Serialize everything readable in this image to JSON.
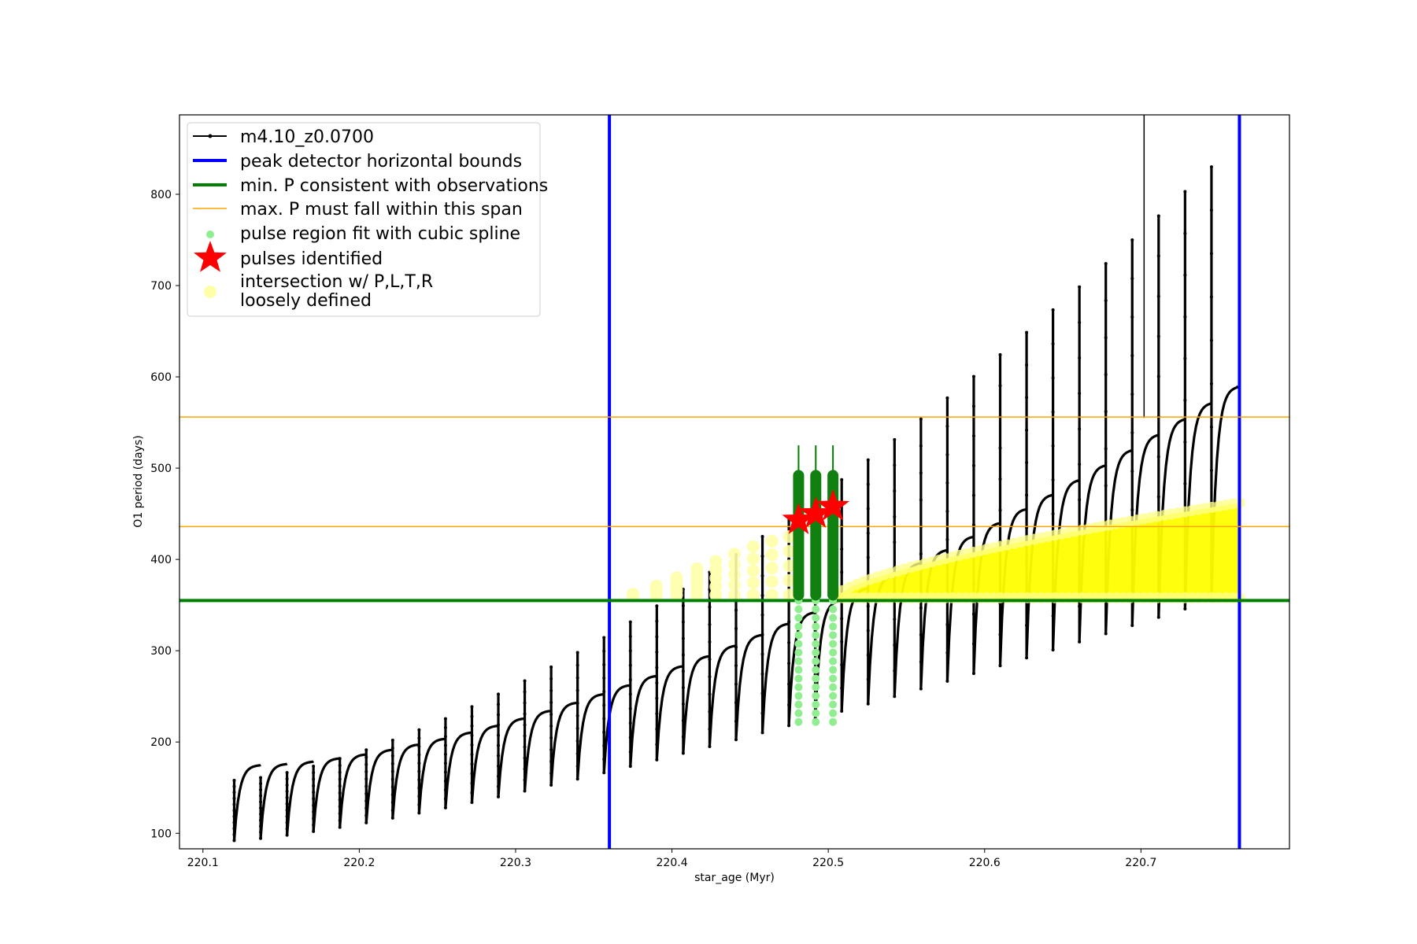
{
  "chart_data": {
    "type": "scatter",
    "xlabel": "star_age (Myr)",
    "ylabel": "O1 period (days)",
    "xlim": [
      220.085,
      220.795
    ],
    "ylim": [
      83,
      887
    ],
    "x_ticks": [
      220.1,
      220.2,
      220.3,
      220.4,
      220.5,
      220.6,
      220.7
    ],
    "x_tick_labels": [
      "220.1",
      "220.2",
      "220.3",
      "220.4",
      "220.5",
      "220.6",
      "220.7"
    ],
    "y_ticks": [
      100,
      200,
      300,
      400,
      500,
      600,
      700,
      800
    ],
    "y_tick_labels": [
      "100",
      "200",
      "300",
      "400",
      "500",
      "600",
      "700",
      "800"
    ],
    "grid": false,
    "legend_placement": "upper-left",
    "legend": [
      {
        "label": "m4.10_z0.0700",
        "marker": "line-dot",
        "color": "#000000"
      },
      {
        "label": "peak detector horizontal bounds",
        "marker": "thick-line",
        "color": "#0000ff"
      },
      {
        "label": "min. P consistent with observations",
        "marker": "thick-line",
        "color": "#008000"
      },
      {
        "label": "max. P must fall within this span",
        "marker": "thin-line",
        "color": "#ffa500"
      },
      {
        "label": "pulse region fit with cubic spline",
        "marker": "dot",
        "color": "#90ee90"
      },
      {
        "label": "pulses identified",
        "marker": "star",
        "color": "#ff0000"
      },
      {
        "label": "intersection w/ P,L,T,R",
        "label2": "loosely defined",
        "marker": "circle",
        "color": "#ffffaa"
      }
    ],
    "series": [
      {
        "name": "m4.10_z0.0700",
        "kind": "pulse-track",
        "color": "#000000",
        "x_start": 220.12,
        "x_end": 220.762,
        "n_pulses": 38,
        "baseline_start": 175,
        "baseline_end": 590,
        "dip_start": 92,
        "dip_end": 355,
        "spike_start": 158,
        "spike_end": 830
      },
      {
        "name": "peak detector horizontal bounds",
        "kind": "vline",
        "color": "#0000ff",
        "x": [
          220.36,
          220.763
        ]
      },
      {
        "name": "min. P consistent with observations",
        "kind": "hline",
        "color": "#008000",
        "y": 355
      },
      {
        "name": "max. P must fall within this span",
        "kind": "hline",
        "color": "#ffa500",
        "y": [
          556,
          436
        ]
      },
      {
        "name": "pulse region fit with cubic spline",
        "kind": "columns",
        "color": "#90ee90",
        "x": [
          220.481,
          220.492,
          220.503
        ],
        "y_min": 222,
        "y_max": 355
      },
      {
        "name": "pulses identified",
        "kind": "points",
        "color": "#ff0000",
        "x": [
          220.481,
          220.492,
          220.503
        ],
        "y": [
          443,
          450,
          458
        ]
      },
      {
        "name": "intersection w/ P,L,T,R",
        "kind": "band",
        "color": "#ffff00",
        "early_x": [
          220.375,
          220.39,
          220.403,
          220.416,
          220.428,
          220.44,
          220.452,
          220.464,
          220.475
        ],
        "early_y": [
          362,
          371,
          380,
          390,
          398,
          406,
          414,
          420,
          425
        ],
        "band_x_start": 220.505,
        "band_x_end": 220.763,
        "band_bottom": 355,
        "band_top_start": 360,
        "band_top_end": 462
      }
    ],
    "extra_lines": [
      {
        "kind": "thin-vline",
        "color": "#000000",
        "x": 220.702,
        "y_from": 555,
        "y_to": 887
      }
    ]
  }
}
